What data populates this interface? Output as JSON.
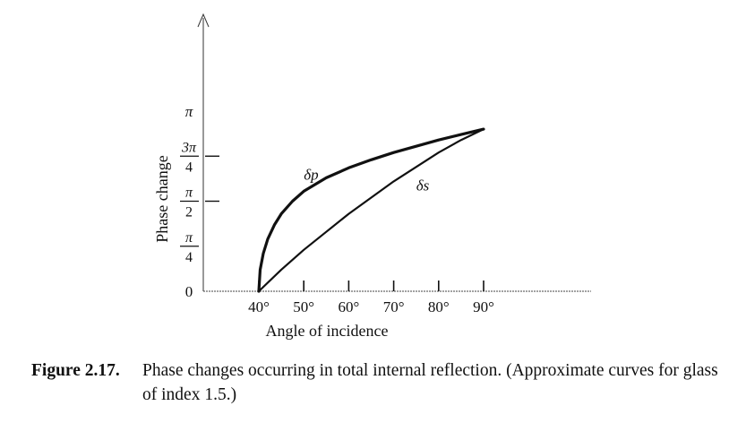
{
  "chart_data": {
    "type": "line",
    "xlabel": "Angle of incidence",
    "ylabel": "Phase change",
    "x_ticks": [
      "40°",
      "50°",
      "60°",
      "70°",
      "80°",
      "90°"
    ],
    "x_tick_values": [
      40,
      50,
      60,
      70,
      80,
      90
    ],
    "y_ticks": [
      {
        "value": 0,
        "label": "0"
      },
      {
        "value": 0.25,
        "num": "π",
        "den": "4"
      },
      {
        "value": 0.5,
        "num": "π",
        "den": "2"
      },
      {
        "value": 0.75,
        "num": "3π",
        "den": "4"
      },
      {
        "value": 1.0,
        "label": "π"
      }
    ],
    "y_unit": "π",
    "xlim": [
      40,
      90
    ],
    "ylim": [
      0,
      1.0
    ],
    "series": [
      {
        "name": "δp",
        "x": [
          40,
          40.3,
          41,
          42,
          43.5,
          45,
          47.5,
          50,
          55,
          60,
          65,
          70,
          75,
          80,
          85,
          90
        ],
        "y": [
          0,
          0.12,
          0.21,
          0.29,
          0.37,
          0.43,
          0.5,
          0.555,
          0.63,
          0.685,
          0.73,
          0.77,
          0.805,
          0.84,
          0.87,
          0.9
        ]
      },
      {
        "name": "δs",
        "x": [
          40,
          45,
          50,
          55,
          60,
          65,
          70,
          75,
          80,
          85,
          90
        ],
        "y": [
          0,
          0.12,
          0.23,
          0.33,
          0.43,
          0.52,
          0.61,
          0.69,
          0.77,
          0.84,
          0.9
        ]
      }
    ]
  },
  "caption": {
    "number": "Figure 2.17.",
    "text": "Phase changes occurring in total internal reflection. (Approximate curves for glass of index 1.5.)"
  }
}
